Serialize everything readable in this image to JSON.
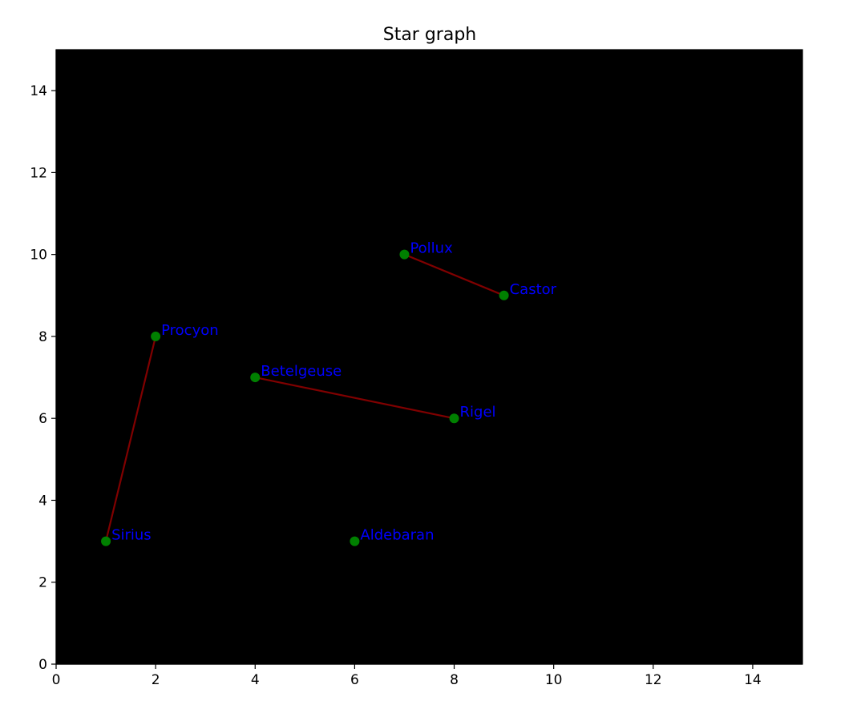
{
  "chart_data": {
    "type": "scatter",
    "title": "Star graph",
    "xlabel": "",
    "ylabel": "",
    "xlim": [
      0,
      15
    ],
    "ylim": [
      0,
      15
    ],
    "x_ticks": [
      0,
      2,
      4,
      6,
      8,
      10,
      12,
      14
    ],
    "y_ticks": [
      0,
      2,
      4,
      6,
      8,
      10,
      12,
      14
    ],
    "grid": false,
    "stars": [
      {
        "name": "Sirius",
        "x": 1,
        "y": 3
      },
      {
        "name": "Procyon",
        "x": 2,
        "y": 8
      },
      {
        "name": "Betelgeuse",
        "x": 4,
        "y": 7
      },
      {
        "name": "Rigel",
        "x": 8,
        "y": 6
      },
      {
        "name": "Aldebaran",
        "x": 6,
        "y": 3
      },
      {
        "name": "Pollux",
        "x": 7,
        "y": 10
      },
      {
        "name": "Castor",
        "x": 9,
        "y": 9
      }
    ],
    "edges": [
      [
        "Sirius",
        "Procyon"
      ],
      [
        "Betelgeuse",
        "Rigel"
      ],
      [
        "Pollux",
        "Castor"
      ]
    ],
    "colors": {
      "background": "#000000",
      "point": "#008000",
      "edge": "#800000",
      "label": "#0000ff"
    }
  }
}
